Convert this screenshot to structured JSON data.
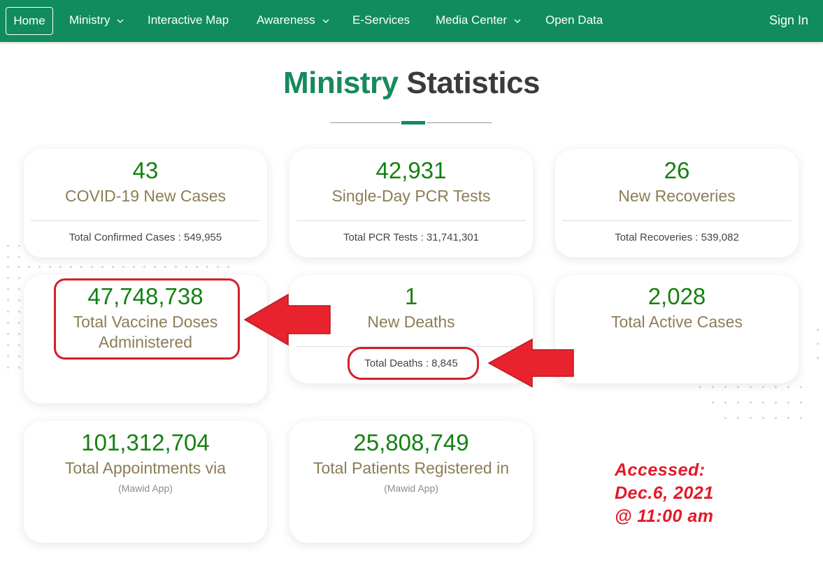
{
  "nav": {
    "home": "Home",
    "items": [
      {
        "label": "Ministry",
        "dropdown": true
      },
      {
        "label": "Interactive Map",
        "dropdown": false
      },
      {
        "label": "Awareness",
        "dropdown": true
      },
      {
        "label": "E-Services",
        "dropdown": false
      },
      {
        "label": "Media Center",
        "dropdown": true
      },
      {
        "label": "Open Data",
        "dropdown": false
      }
    ],
    "sign_in": "Sign In"
  },
  "title": {
    "green": "Ministry",
    "dark": "Statistics"
  },
  "cards": [
    {
      "value": "43",
      "label": "COVID-19 New Cases",
      "total": "Total Confirmed Cases : 549,955"
    },
    {
      "value": "42,931",
      "label": "Single-Day PCR Tests",
      "total": "Total PCR Tests : 31,741,301"
    },
    {
      "value": "26",
      "label": "New Recoveries",
      "total": "Total Recoveries : 539,082"
    },
    {
      "value": "47,748,738",
      "label": "Total Vaccine Doses Administered"
    },
    {
      "value": "1",
      "label": "New Deaths",
      "total": "Total Deaths : 8,845"
    },
    {
      "value": "2,028",
      "label": "Total Active Cases"
    },
    {
      "value": "101,312,704",
      "label": "Total Appointments via",
      "sub": "(Mawid App)"
    },
    {
      "value": "25,808,749",
      "label": "Total Patients Registered in",
      "sub": "(Mawid App)"
    }
  ],
  "annotation": {
    "line1": "Accessed:",
    "line2": "Dec.6, 2021",
    "line3": "@ 11:00 am",
    "color": "#e21a28"
  },
  "colors": {
    "nav_bg": "#108c5e",
    "value_green": "#168012",
    "label_khaki": "#8c7d55",
    "highlight_red": "#d31f2a"
  }
}
